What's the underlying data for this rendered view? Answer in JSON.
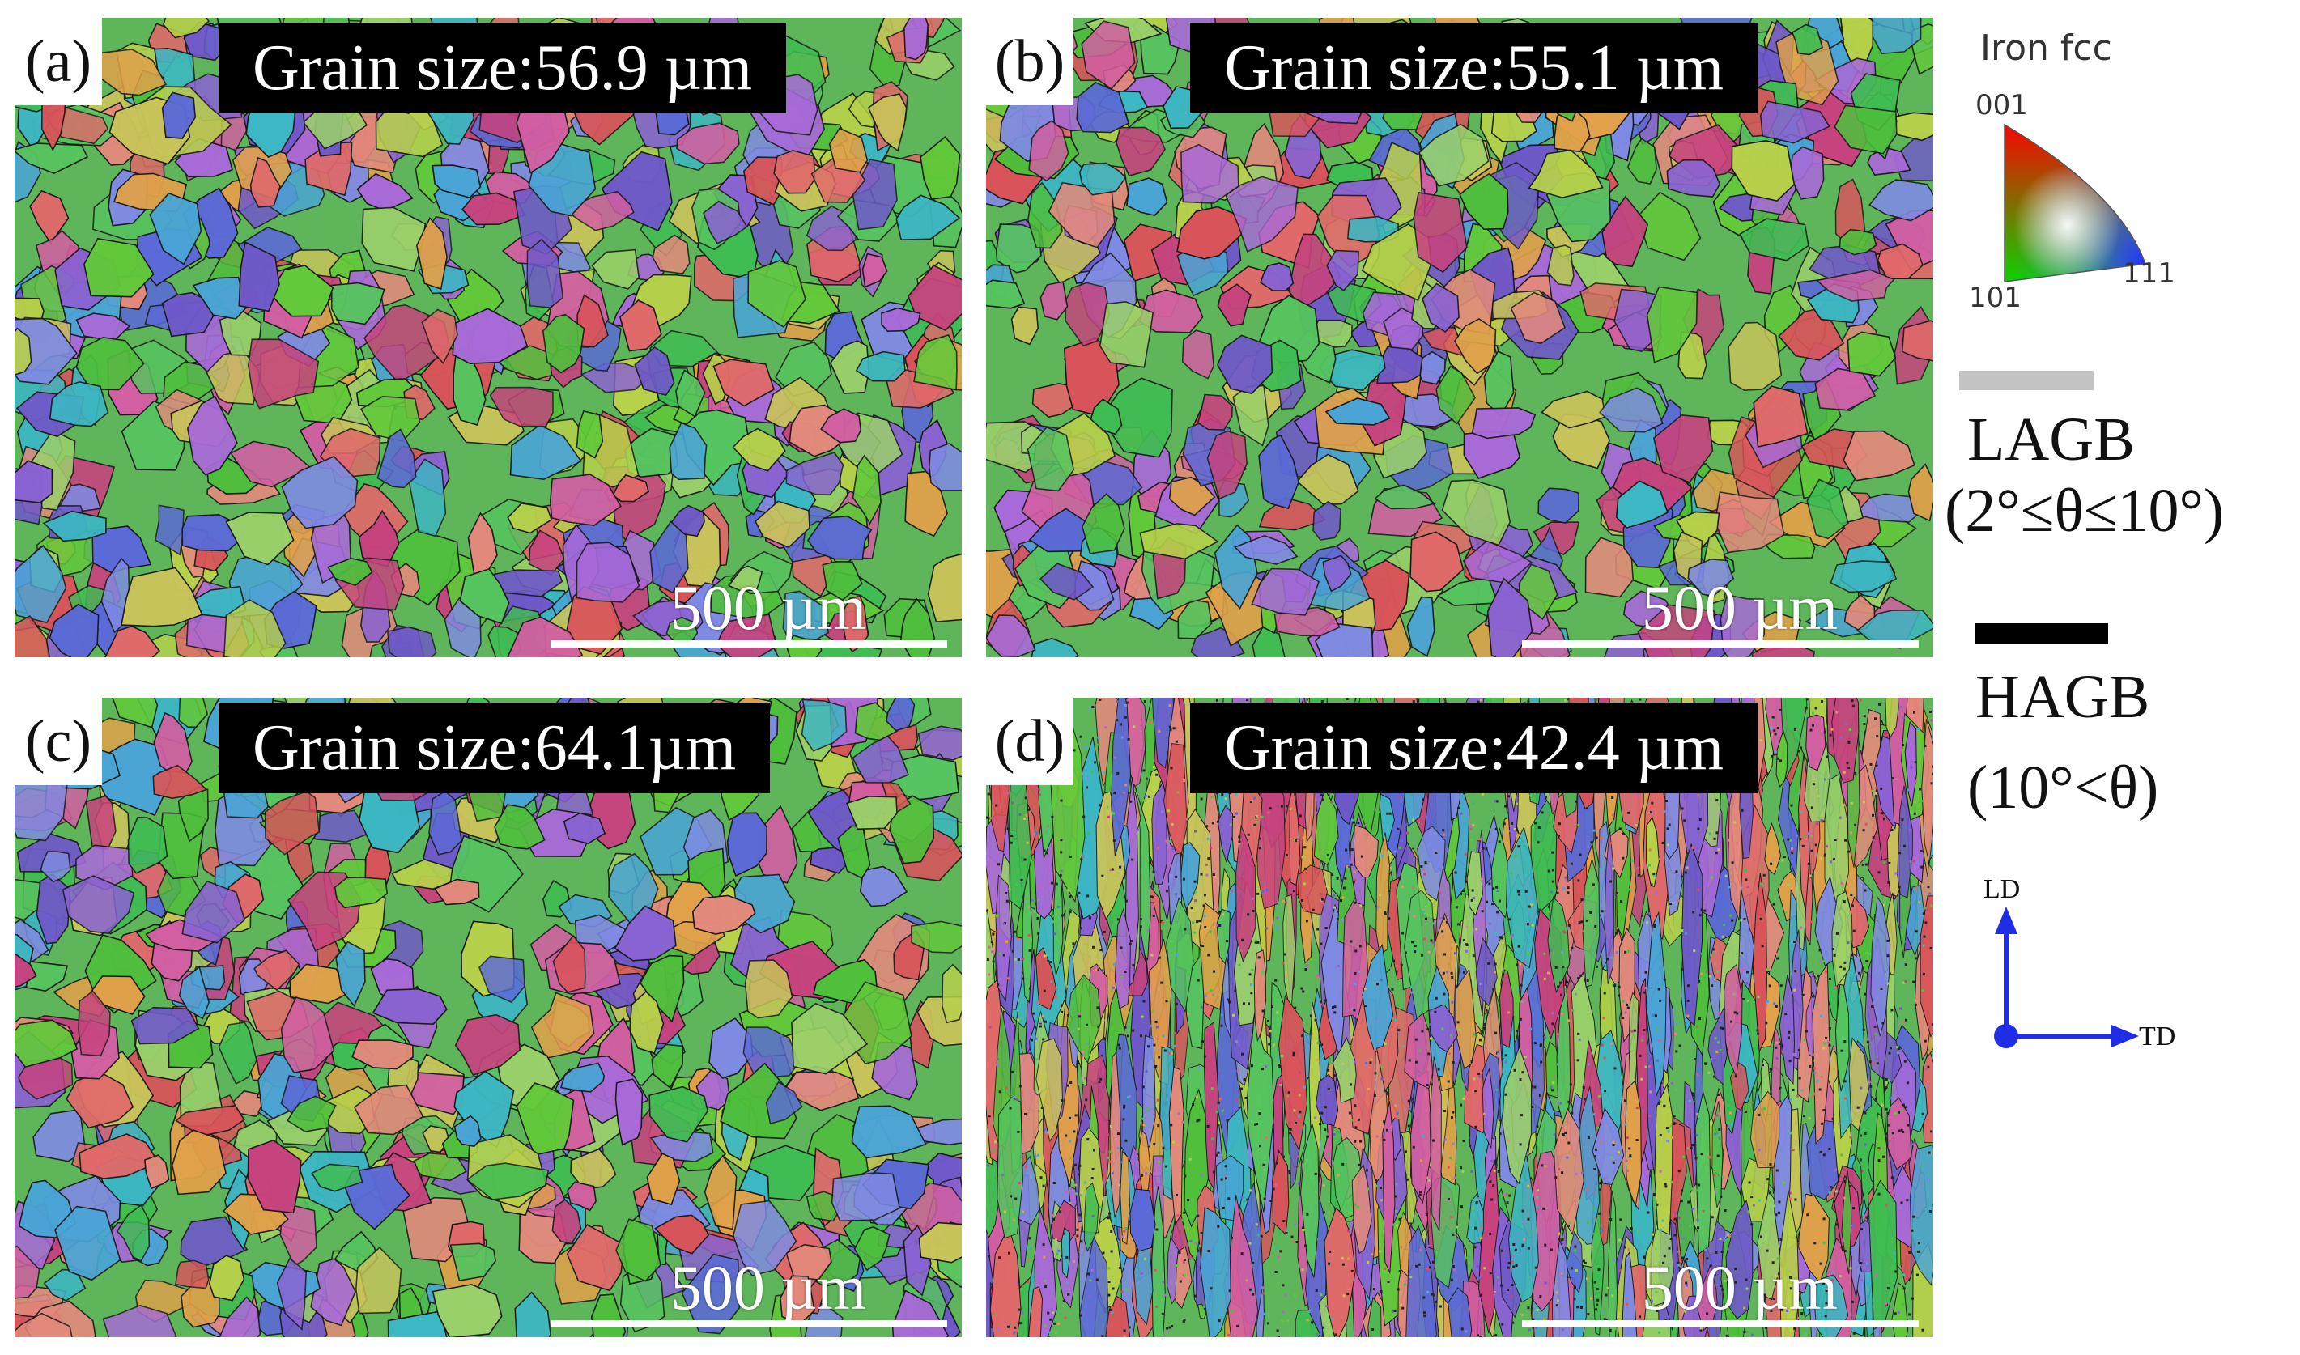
{
  "panels": [
    {
      "letter": "(a)",
      "grain_label": "Grain size:56.9 µm",
      "scale_label": "500 µm",
      "grain_size_um": 56.9,
      "seed": 11,
      "style": "equiaxed"
    },
    {
      "letter": "(b)",
      "grain_label": "Grain size:55.1 µm",
      "scale_label": "500 µm",
      "grain_size_um": 55.1,
      "seed": 23,
      "style": "equiaxed"
    },
    {
      "letter": "(c)",
      "grain_label": "Grain size:64.1µm",
      "scale_label": "500 µm",
      "grain_size_um": 64.1,
      "seed": 37,
      "style": "equiaxed"
    },
    {
      "letter": "(d)",
      "grain_label": "Grain size:42.4 µm",
      "scale_label": "500 µm",
      "grain_size_um": 42.4,
      "seed": 53,
      "style": "columnar"
    }
  ],
  "legend": {
    "ipf_title": "Iron fcc",
    "ipf_corners": {
      "c001": "001",
      "c101": "101",
      "c111": "111"
    },
    "lagb_title": "LAGB",
    "lagb_range": "(2°≤θ≤10°)",
    "lagb_color": "#c4c4c4",
    "hagb_title": "HAGB",
    "hagb_range": "(10°<θ)",
    "hagb_color": "#000000",
    "axis_ld": "LD",
    "axis_td": "TD",
    "axis_color": "#1f2ee6"
  }
}
